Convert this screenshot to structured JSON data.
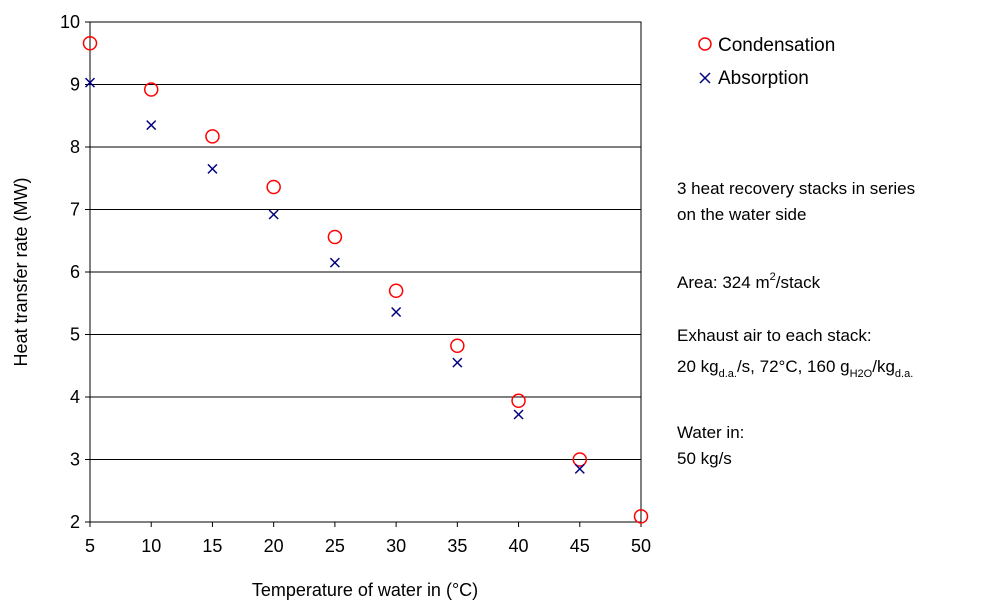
{
  "chart_data": {
    "type": "scatter",
    "title": "",
    "xlabel": "Temperature of water in (°C)",
    "ylabel": "Heat transfer rate (MW)",
    "xlim": [
      5,
      50
    ],
    "ylim": [
      2,
      10
    ],
    "xticks": [
      5,
      10,
      15,
      20,
      25,
      30,
      35,
      40,
      45,
      50
    ],
    "yticks": [
      2,
      3,
      4,
      5,
      6,
      7,
      8,
      9,
      10
    ],
    "grid": "horizontal",
    "legend_position": "right",
    "series": [
      {
        "name": "Condensation",
        "marker": "circle",
        "color": "#ff0000",
        "x": [
          5,
          10,
          15,
          20,
          25,
          30,
          35,
          40,
          45,
          50
        ],
        "y": [
          9.66,
          8.92,
          8.17,
          7.36,
          6.56,
          5.7,
          4.82,
          3.94,
          3.0,
          2.09
        ]
      },
      {
        "name": "Absorption",
        "marker": "x",
        "color": "#000080",
        "x": [
          5,
          10,
          15,
          20,
          25,
          30,
          35,
          40,
          45
        ],
        "y": [
          9.03,
          8.35,
          7.65,
          6.92,
          6.15,
          5.36,
          4.55,
          3.72,
          2.85
        ]
      }
    ]
  },
  "notes": {
    "stacks_line1": "3 heat recovery stacks in series",
    "stacks_line2": "on the water side",
    "area_prefix": "Area: 324 m",
    "area_sup": "2",
    "area_suffix": "/stack",
    "exhaust_line1": "Exhaust air to each stack:",
    "exhaust_a": "20 kg",
    "exhaust_sub1": "d.a.",
    "exhaust_b": "/s, 72°C, 160 g",
    "exhaust_sub2": "H2O",
    "exhaust_c": "/kg",
    "exhaust_sub3": "d.a.",
    "water_line1": "Water in:",
    "water_line2": "50 kg/s"
  }
}
